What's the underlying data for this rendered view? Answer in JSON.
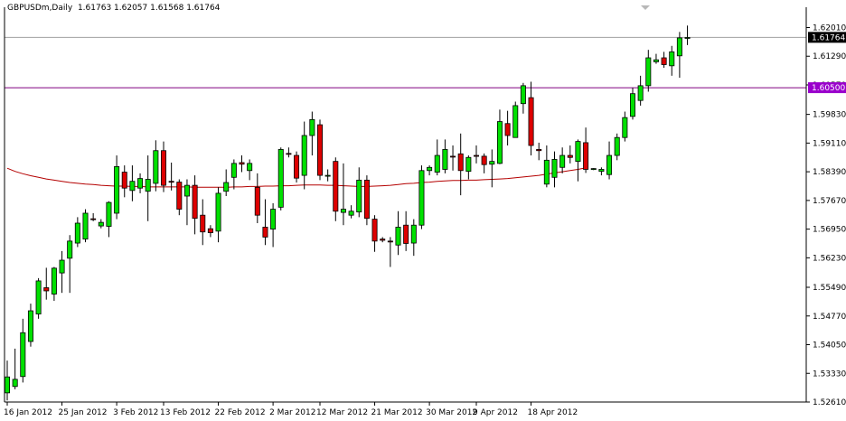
{
  "header": {
    "symbol": "GBPUSDm,Daily",
    "ohlc": "1.61763 1.62057 1.61568 1.61764"
  },
  "colors": {
    "background": "#ffffff",
    "bull": "#00e000",
    "bear": "#dd0000",
    "wick": "#000000",
    "ma_line": "#b40000",
    "level_line": "#800080",
    "level_badge": "#9a00cc",
    "price_line": "#a0a0a0",
    "price_badge": "#000000",
    "axis": "#000000"
  },
  "chart_data": {
    "type": "candlestick",
    "symbol": "GBPUSDm",
    "timeframe": "Daily",
    "ylim": [
      1.5261,
      1.6252
    ],
    "y_ticks": [
      "1.62010",
      "1.61290",
      "1.60570",
      "1.59830",
      "1.59110",
      "1.58390",
      "1.57670",
      "1.56950",
      "1.56230",
      "1.55490",
      "1.54770",
      "1.54050",
      "1.53330",
      "1.52610"
    ],
    "x_ticks": [
      {
        "label": "16 Jan 2012",
        "index": 0
      },
      {
        "label": "25 Jan 2012",
        "index": 7
      },
      {
        "label": "3 Feb 2012",
        "index": 14
      },
      {
        "label": "13 Feb 2012",
        "index": 20
      },
      {
        "label": "22 Feb 2012",
        "index": 27
      },
      {
        "label": "2 Mar 2012",
        "index": 34
      },
      {
        "label": "12 Mar 2012",
        "index": 40
      },
      {
        "label": "21 Mar 2012",
        "index": 47
      },
      {
        "label": "30 Mar 2012",
        "index": 54
      },
      {
        "label": "9 Apr 2012",
        "index": 60
      },
      {
        "label": "18 Apr 2012",
        "index": 67
      }
    ],
    "current_price": "1.61764",
    "horizontal_level": "1.60500",
    "candles": [
      {
        "o": 1.5284,
        "h": 1.5365,
        "l": 1.5265,
        "c": 1.5324
      },
      {
        "o": 1.53,
        "h": 1.5395,
        "l": 1.5293,
        "c": 1.5318
      },
      {
        "o": 1.5325,
        "h": 1.547,
        "l": 1.531,
        "c": 1.5435
      },
      {
        "o": 1.5413,
        "h": 1.5508,
        "l": 1.54,
        "c": 1.549
      },
      {
        "o": 1.5482,
        "h": 1.5572,
        "l": 1.547,
        "c": 1.5565
      },
      {
        "o": 1.5548,
        "h": 1.5598,
        "l": 1.5518,
        "c": 1.554
      },
      {
        "o": 1.5532,
        "h": 1.56,
        "l": 1.5515,
        "c": 1.5597
      },
      {
        "o": 1.5585,
        "h": 1.564,
        "l": 1.5535,
        "c": 1.5617
      },
      {
        "o": 1.5622,
        "h": 1.568,
        "l": 1.5535,
        "c": 1.5665
      },
      {
        "o": 1.566,
        "h": 1.5725,
        "l": 1.565,
        "c": 1.571
      },
      {
        "o": 1.567,
        "h": 1.5745,
        "l": 1.5662,
        "c": 1.5735
      },
      {
        "o": 1.5721,
        "h": 1.5735,
        "l": 1.5715,
        "c": 1.5719
      },
      {
        "o": 1.5703,
        "h": 1.572,
        "l": 1.5697,
        "c": 1.5712
      },
      {
        "o": 1.5702,
        "h": 1.5765,
        "l": 1.5675,
        "c": 1.5762
      },
      {
        "o": 1.5735,
        "h": 1.588,
        "l": 1.572,
        "c": 1.5852
      },
      {
        "o": 1.5838,
        "h": 1.5855,
        "l": 1.5775,
        "c": 1.5798
      },
      {
        "o": 1.5792,
        "h": 1.5855,
        "l": 1.5765,
        "c": 1.5815
      },
      {
        "o": 1.5798,
        "h": 1.5835,
        "l": 1.5785,
        "c": 1.5822
      },
      {
        "o": 1.579,
        "h": 1.588,
        "l": 1.5715,
        "c": 1.582
      },
      {
        "o": 1.581,
        "h": 1.5918,
        "l": 1.579,
        "c": 1.5892
      },
      {
        "o": 1.5892,
        "h": 1.5915,
        "l": 1.5788,
        "c": 1.5805
      },
      {
        "o": 1.5815,
        "h": 1.5862,
        "l": 1.5792,
        "c": 1.5813
      },
      {
        "o": 1.5813,
        "h": 1.582,
        "l": 1.573,
        "c": 1.5745
      },
      {
        "o": 1.5778,
        "h": 1.582,
        "l": 1.5705,
        "c": 1.5805
      },
      {
        "o": 1.5805,
        "h": 1.583,
        "l": 1.5682,
        "c": 1.5722
      },
      {
        "o": 1.573,
        "h": 1.577,
        "l": 1.5655,
        "c": 1.5688
      },
      {
        "o": 1.5696,
        "h": 1.5705,
        "l": 1.5675,
        "c": 1.5686
      },
      {
        "o": 1.569,
        "h": 1.58,
        "l": 1.5662,
        "c": 1.5785
      },
      {
        "o": 1.579,
        "h": 1.5845,
        "l": 1.5778,
        "c": 1.5812
      },
      {
        "o": 1.5825,
        "h": 1.587,
        "l": 1.5795,
        "c": 1.586
      },
      {
        "o": 1.5862,
        "h": 1.588,
        "l": 1.5838,
        "c": 1.5858
      },
      {
        "o": 1.5842,
        "h": 1.587,
        "l": 1.5818,
        "c": 1.586
      },
      {
        "o": 1.58,
        "h": 1.5835,
        "l": 1.571,
        "c": 1.573
      },
      {
        "o": 1.57,
        "h": 1.577,
        "l": 1.5655,
        "c": 1.5675
      },
      {
        "o": 1.5695,
        "h": 1.576,
        "l": 1.565,
        "c": 1.5745
      },
      {
        "o": 1.575,
        "h": 1.59,
        "l": 1.5742,
        "c": 1.5895
      },
      {
        "o": 1.5885,
        "h": 1.59,
        "l": 1.5875,
        "c": 1.5883
      },
      {
        "o": 1.588,
        "h": 1.589,
        "l": 1.5812,
        "c": 1.5823
      },
      {
        "o": 1.583,
        "h": 1.5965,
        "l": 1.5795,
        "c": 1.593
      },
      {
        "o": 1.593,
        "h": 1.599,
        "l": 1.588,
        "c": 1.597
      },
      {
        "o": 1.5957,
        "h": 1.597,
        "l": 1.5818,
        "c": 1.583
      },
      {
        "o": 1.5828,
        "h": 1.5845,
        "l": 1.5815,
        "c": 1.583
      },
      {
        "o": 1.5865,
        "h": 1.5875,
        "l": 1.5715,
        "c": 1.574
      },
      {
        "o": 1.5737,
        "h": 1.586,
        "l": 1.5705,
        "c": 1.5745
      },
      {
        "o": 1.573,
        "h": 1.5755,
        "l": 1.5722,
        "c": 1.574
      },
      {
        "o": 1.5738,
        "h": 1.585,
        "l": 1.5725,
        "c": 1.5818
      },
      {
        "o": 1.5818,
        "h": 1.583,
        "l": 1.5705,
        "c": 1.5722
      },
      {
        "o": 1.572,
        "h": 1.573,
        "l": 1.5638,
        "c": 1.5665
      },
      {
        "o": 1.567,
        "h": 1.5675,
        "l": 1.5662,
        "c": 1.5667
      },
      {
        "o": 1.5665,
        "h": 1.5675,
        "l": 1.56,
        "c": 1.5664
      },
      {
        "o": 1.5655,
        "h": 1.574,
        "l": 1.563,
        "c": 1.57
      },
      {
        "o": 1.5705,
        "h": 1.574,
        "l": 1.564,
        "c": 1.5659
      },
      {
        "o": 1.566,
        "h": 1.572,
        "l": 1.5628,
        "c": 1.5705
      },
      {
        "o": 1.5705,
        "h": 1.5855,
        "l": 1.5695,
        "c": 1.5842
      },
      {
        "o": 1.5842,
        "h": 1.5855,
        "l": 1.583,
        "c": 1.585
      },
      {
        "o": 1.5838,
        "h": 1.592,
        "l": 1.583,
        "c": 1.588
      },
      {
        "o": 1.5845,
        "h": 1.592,
        "l": 1.5835,
        "c": 1.5895
      },
      {
        "o": 1.5878,
        "h": 1.5905,
        "l": 1.5842,
        "c": 1.5876
      },
      {
        "o": 1.5884,
        "h": 1.5935,
        "l": 1.578,
        "c": 1.5842
      },
      {
        "o": 1.584,
        "h": 1.588,
        "l": 1.582,
        "c": 1.5875
      },
      {
        "o": 1.588,
        "h": 1.5905,
        "l": 1.586,
        "c": 1.5878
      },
      {
        "o": 1.5878,
        "h": 1.5885,
        "l": 1.5835,
        "c": 1.5857
      },
      {
        "o": 1.5858,
        "h": 1.5895,
        "l": 1.58,
        "c": 1.5865
      },
      {
        "o": 1.586,
        "h": 1.5995,
        "l": 1.5858,
        "c": 1.5965
      },
      {
        "o": 1.596,
        "h": 1.5992,
        "l": 1.5905,
        "c": 1.593
      },
      {
        "o": 1.5925,
        "h": 1.6015,
        "l": 1.5925,
        "c": 1.6005
      },
      {
        "o": 1.601,
        "h": 1.6062,
        "l": 1.5985,
        "c": 1.6055
      },
      {
        "o": 1.6025,
        "h": 1.6065,
        "l": 1.588,
        "c": 1.5905
      },
      {
        "o": 1.5895,
        "h": 1.5912,
        "l": 1.5868,
        "c": 1.5892
      },
      {
        "o": 1.5808,
        "h": 1.5905,
        "l": 1.58,
        "c": 1.5868
      },
      {
        "o": 1.5825,
        "h": 1.589,
        "l": 1.58,
        "c": 1.587
      },
      {
        "o": 1.585,
        "h": 1.59,
        "l": 1.5835,
        "c": 1.588
      },
      {
        "o": 1.588,
        "h": 1.5905,
        "l": 1.586,
        "c": 1.5875
      },
      {
        "o": 1.5865,
        "h": 1.592,
        "l": 1.5815,
        "c": 1.5915
      },
      {
        "o": 1.5912,
        "h": 1.595,
        "l": 1.5836,
        "c": 1.5845
      },
      {
        "o": 1.5846,
        "h": 1.5848,
        "l": 1.5843,
        "c": 1.5847
      },
      {
        "o": 1.584,
        "h": 1.585,
        "l": 1.583,
        "c": 1.5845
      },
      {
        "o": 1.5832,
        "h": 1.5915,
        "l": 1.582,
        "c": 1.588
      },
      {
        "o": 1.588,
        "h": 1.5935,
        "l": 1.5868,
        "c": 1.5925
      },
      {
        "o": 1.5925,
        "h": 1.599,
        "l": 1.5915,
        "c": 1.5975
      },
      {
        "o": 1.5978,
        "h": 1.605,
        "l": 1.597,
        "c": 1.6035
      },
      {
        "o": 1.6018,
        "h": 1.608,
        "l": 1.6005,
        "c": 1.6055
      },
      {
        "o": 1.6055,
        "h": 1.6145,
        "l": 1.604,
        "c": 1.6125
      },
      {
        "o": 1.6115,
        "h": 1.6135,
        "l": 1.611,
        "c": 1.612
      },
      {
        "o": 1.6125,
        "h": 1.614,
        "l": 1.61,
        "c": 1.6108
      },
      {
        "o": 1.6105,
        "h": 1.6155,
        "l": 1.608,
        "c": 1.614
      },
      {
        "o": 1.613,
        "h": 1.619,
        "l": 1.6075,
        "c": 1.6175
      },
      {
        "o": 1.6176,
        "h": 1.6206,
        "l": 1.6157,
        "c": 1.6176
      }
    ],
    "ma": [
      1.5848,
      1.584,
      1.5834,
      1.5829,
      1.5825,
      1.5821,
      1.5818,
      1.5815,
      1.5812,
      1.581,
      1.5808,
      1.5807,
      1.5805,
      1.5804,
      1.5803,
      1.5803,
      1.5802,
      1.5802,
      1.5801,
      1.5801,
      1.5801,
      1.5801,
      1.5801,
      1.5801,
      1.58,
      1.58,
      1.58,
      1.58,
      1.58,
      1.5801,
      1.5801,
      1.5802,
      1.5802,
      1.5803,
      1.5803,
      1.5804,
      1.5804,
      1.5805,
      1.5806,
      1.5806,
      1.5806,
      1.5805,
      1.5805,
      1.5804,
      1.5803,
      1.5802,
      1.5802,
      1.5803,
      1.5804,
      1.5805,
      1.5807,
      1.5809,
      1.581,
      1.5812,
      1.5813,
      1.5815,
      1.5816,
      1.5817,
      1.5817,
      1.5818,
      1.5818,
      1.5819,
      1.582,
      1.5821,
      1.5822,
      1.5824,
      1.5826,
      1.5828,
      1.583,
      1.5833,
      1.5836,
      1.5839,
      1.5842,
      1.5845,
      1.5849
    ]
  }
}
